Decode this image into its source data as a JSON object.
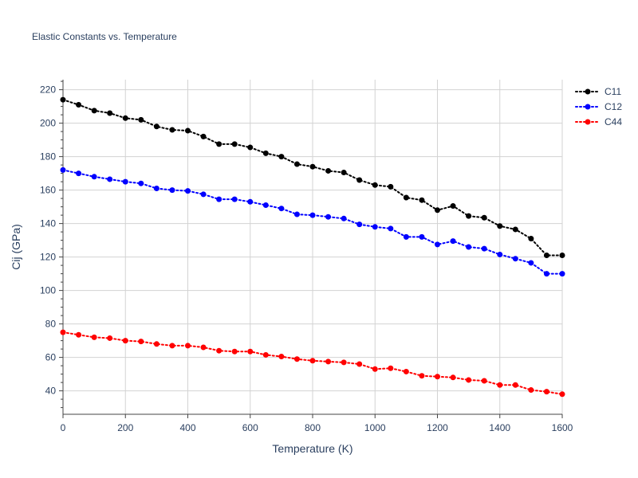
{
  "chart_data": {
    "type": "line",
    "title": "Elastic Constants vs. Temperature",
    "xlabel": "Temperature (K)",
    "ylabel": "Cij (GPa)",
    "xlim": [
      0,
      1600
    ],
    "ylim": [
      26,
      226
    ],
    "x_ticks": [
      0,
      200,
      400,
      600,
      800,
      1000,
      1200,
      1400,
      1600
    ],
    "y_ticks": [
      40,
      60,
      80,
      100,
      120,
      140,
      160,
      180,
      200,
      220
    ],
    "y_minor_step": 5,
    "grid": true,
    "legend_position": "top-right",
    "line_style": "dotted",
    "x": [
      0,
      50,
      100,
      150,
      200,
      250,
      300,
      350,
      400,
      450,
      500,
      550,
      600,
      650,
      700,
      750,
      800,
      850,
      900,
      950,
      1000,
      1050,
      1100,
      1150,
      1200,
      1250,
      1300,
      1350,
      1400,
      1450,
      1500,
      1550,
      1600
    ],
    "series": [
      {
        "name": "C11",
        "color": "#000000",
        "values": [
          214,
          211,
          207.5,
          206,
          203,
          202,
          198,
          196,
          195.5,
          192,
          187.5,
          187.5,
          185.5,
          182,
          180,
          175.5,
          174,
          171.5,
          170.5,
          166,
          163,
          162,
          155.5,
          154,
          148,
          150.5,
          144.5,
          143.5,
          138.5,
          136.5,
          131,
          121,
          121
        ]
      },
      {
        "name": "C12",
        "color": "#0000ff",
        "values": [
          172,
          170,
          168,
          166.5,
          165,
          164,
          161,
          160,
          159.5,
          157.5,
          154.5,
          154.5,
          153,
          151,
          149,
          145.5,
          145,
          144,
          143,
          139.5,
          138,
          137,
          132,
          132,
          127.5,
          129.5,
          126,
          125,
          121.5,
          119,
          116.5,
          110,
          110
        ]
      },
      {
        "name": "C44",
        "color": "#ff0000",
        "values": [
          75,
          73.5,
          72,
          71.5,
          70,
          69.5,
          68,
          67,
          67,
          66,
          64,
          63.5,
          63.5,
          61.5,
          60.5,
          59,
          58,
          57.5,
          57,
          56,
          53,
          53.5,
          51.5,
          49,
          48.5,
          48,
          46.5,
          46,
          43.5,
          43.5,
          40.5,
          39.5,
          38
        ]
      }
    ]
  }
}
